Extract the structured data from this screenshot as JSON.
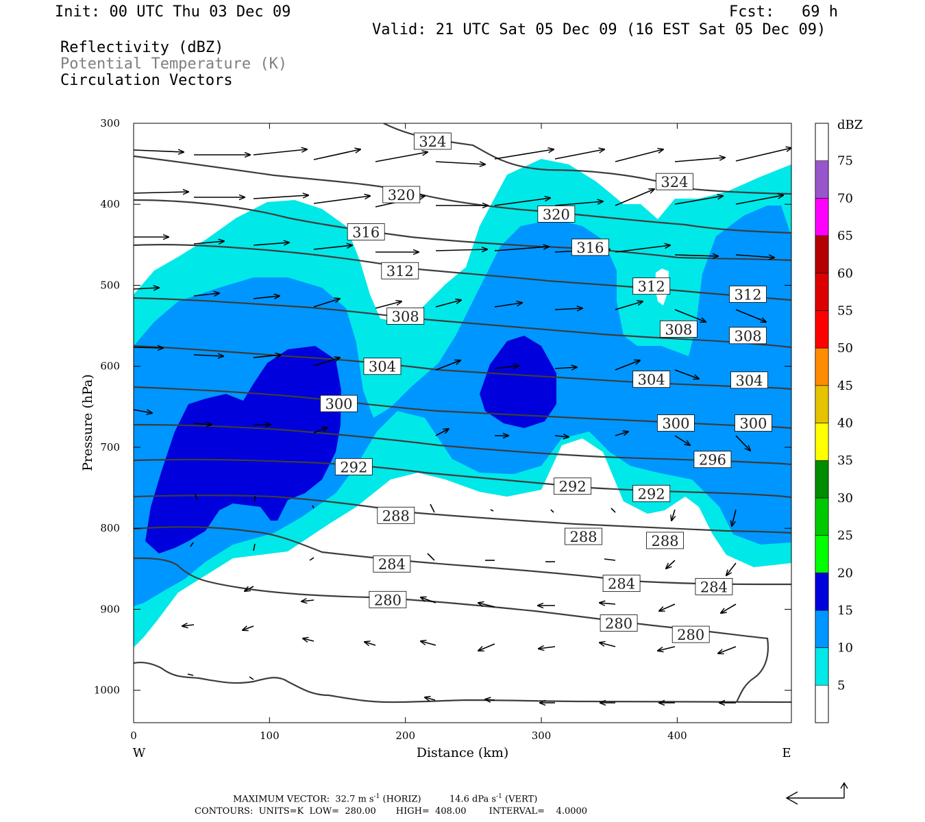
{
  "header": {
    "init": "Init: 00 UTC Thu 03 Dec 09",
    "fcst": "Fcst:   69 h",
    "valid": "Valid: 21 UTC Sat 05 Dec 09 (16 EST Sat 05 Dec 09)",
    "fields": [
      "Reflectivity (dBZ)",
      "Potential Temperature (K)",
      "Circulation Vectors"
    ]
  },
  "chart_data": {
    "type": "contour",
    "xlabel": "Distance (km)",
    "ylabel": "Pressure (hPa)",
    "x_ticks": [
      0,
      100,
      200,
      300,
      400
    ],
    "y_ticks": [
      300,
      400,
      500,
      600,
      700,
      800,
      900,
      1000
    ],
    "xlim": [
      0,
      484
    ],
    "ylim": [
      1040,
      300
    ],
    "x_end_labels": {
      "left": "W",
      "right": "E"
    },
    "colorbar": {
      "title": "dBZ",
      "labels": [
        5,
        10,
        15,
        20,
        25,
        30,
        35,
        40,
        45,
        50,
        55,
        60,
        65,
        70,
        75
      ],
      "colors": [
        "#00e8e8",
        "#0096ff",
        "#0000dc",
        "#00ff00",
        "#00c800",
        "#008c00",
        "#ffff00",
        "#e6c300",
        "#ff8c00",
        "#ff0000",
        "#dc0000",
        "#b40000",
        "#ff00ff",
        "#9955cc",
        "#ffffff"
      ]
    },
    "theta_labels": [
      {
        "value": "324",
        "x": 220,
        "p": 322
      },
      {
        "value": "324",
        "x": 398,
        "p": 372
      },
      {
        "value": "320",
        "x": 197,
        "p": 388
      },
      {
        "value": "320",
        "x": 311,
        "p": 412
      },
      {
        "value": "316",
        "x": 171,
        "p": 434
      },
      {
        "value": "316",
        "x": 336,
        "p": 453
      },
      {
        "value": "312",
        "x": 196,
        "p": 482
      },
      {
        "value": "312",
        "x": 381,
        "p": 501
      },
      {
        "value": "312",
        "x": 452,
        "p": 511
      },
      {
        "value": "308",
        "x": 200,
        "p": 538
      },
      {
        "value": "308",
        "x": 401,
        "p": 554
      },
      {
        "value": "308",
        "x": 452,
        "p": 562
      },
      {
        "value": "304",
        "x": 183,
        "p": 600
      },
      {
        "value": "304",
        "x": 381,
        "p": 616
      },
      {
        "value": "304",
        "x": 453,
        "p": 617
      },
      {
        "value": "300",
        "x": 151,
        "p": 646
      },
      {
        "value": "300",
        "x": 399,
        "p": 670
      },
      {
        "value": "300",
        "x": 456,
        "p": 670
      },
      {
        "value": "296",
        "x": 426,
        "p": 715
      },
      {
        "value": "292",
        "x": 162,
        "p": 724
      },
      {
        "value": "292",
        "x": 323,
        "p": 748
      },
      {
        "value": "292",
        "x": 381,
        "p": 757
      },
      {
        "value": "288",
        "x": 193,
        "p": 784
      },
      {
        "value": "288",
        "x": 331,
        "p": 810
      },
      {
        "value": "288",
        "x": 391,
        "p": 815
      },
      {
        "value": "284",
        "x": 190,
        "p": 844
      },
      {
        "value": "284",
        "x": 359,
        "p": 868
      },
      {
        "value": "284",
        "x": 427,
        "p": 872
      },
      {
        "value": "280",
        "x": 187,
        "p": 888
      },
      {
        "value": "280",
        "x": 357,
        "p": 917
      },
      {
        "value": "280",
        "x": 410,
        "p": 931
      }
    ]
  },
  "footer": {
    "max_vector_label": "MAXIMUM VECTOR:",
    "horiz_value": "32.7 m s",
    "horiz_sup": "-1",
    "horiz_unit": "(HORIZ)",
    "vert_value": "14.6 dPa s",
    "vert_sup": "-1",
    "vert_unit": "(VERT)",
    "contours": "CONTOURS:  UNITS=K  LOW=  280.00       HIGH=  408.00        INTERVAL=    4.0000"
  }
}
